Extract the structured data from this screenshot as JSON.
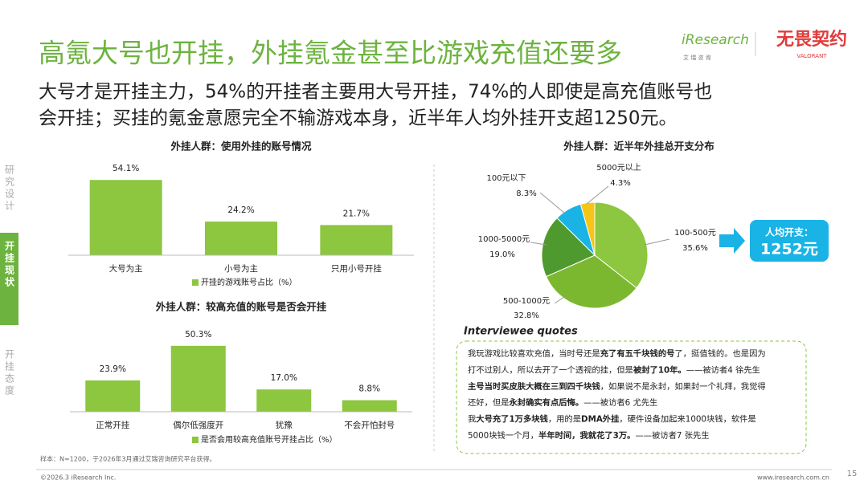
{
  "header": {
    "title": "高氪大号也开挂，外挂氪金甚至比游戏充值还要多",
    "subtitle": [
      "大号才是开挂主力，54%的开挂者主要用大号开挂，74%的人即使是高充值账号也",
      "会开挂；买挂的氪金意愿完全不输游戏本身，近半年人均外挂开支超1250元。"
    ]
  },
  "logos": {
    "iresearch": "iResearch",
    "iresearch_cn": "艾 瑞 咨 询",
    "game": "无畏契约",
    "game_en": "VALORANT"
  },
  "sidebar": [
    "研究设计",
    "开挂现状",
    "开挂态度"
  ],
  "chart_data": [
    {
      "type": "bar",
      "title": "外挂人群：使用外挂的账号情况",
      "categories": [
        "大号为主",
        "小号为主",
        "只用小号开挂"
      ],
      "series": [
        {
          "name": "开挂的游戏账号占比（%）",
          "color": "#8dc63f",
          "values": [
            54.1,
            24.2,
            21.7
          ],
          "value_labels": [
            "54.1%",
            "24.2%",
            "21.7%"
          ]
        }
      ],
      "ylim": [
        0,
        60
      ]
    },
    {
      "type": "bar",
      "title": "外挂人群：较高充值的账号是否会开挂",
      "categories": [
        "正常开挂",
        "偶尔低强度开",
        "犹豫",
        "不会开怕封号"
      ],
      "series": [
        {
          "name": "是否会用较高充值账号开挂占比（%）",
          "color": "#8dc63f",
          "values": [
            23.9,
            50.3,
            17.0,
            8.8
          ],
          "value_labels": [
            "23.9%",
            "50.3%",
            "17.0%",
            "8.8%"
          ]
        }
      ],
      "ylim": [
        0,
        60
      ]
    },
    {
      "type": "pie",
      "title": "外挂人群：近半年外挂总开支分布",
      "categories": [
        "100-500元",
        "500-1000元",
        "1000-5000元",
        "100元以下",
        "5000元以上"
      ],
      "values": [
        35.6,
        32.8,
        19.0,
        8.3,
        4.3
      ],
      "value_labels": [
        "35.6%",
        "32.8%",
        "19.0%",
        "8.3%",
        "4.3%"
      ],
      "colors": [
        "#8dc63f",
        "#7cb82f",
        "#4e9a2e",
        "#1ab3e6",
        "#f5c518"
      ]
    }
  ],
  "callout": {
    "label": "人均开支：",
    "value": "1252元"
  },
  "quotes": {
    "title": "Interviewee quotes",
    "lines": [
      [
        {
          "text": "我玩游戏比较喜欢充值，当时号还是",
          "bold": false
        },
        {
          "text": "充了有五千块钱的号",
          "bold": true
        },
        {
          "text": "了，挺值钱的。也是因为",
          "bold": false
        }
      ],
      [
        {
          "text": "打不过别人，所以去开了一个透视的挂，但是",
          "bold": false
        },
        {
          "text": "被封了10年。",
          "bold": true
        },
        {
          "text": "——被访者4 徐先生",
          "bold": false
        }
      ],
      [
        {
          "text": "主号当时买皮肤大概在三到四千块钱",
          "bold": true
        },
        {
          "text": "，如果说不是永封，如果封一个礼拜，我觉得",
          "bold": false
        }
      ],
      [
        {
          "text": "还好，但是",
          "bold": false
        },
        {
          "text": "永封确实有点后悔。",
          "bold": true
        },
        {
          "text": "——被访者6 尤先生",
          "bold": false
        }
      ],
      [
        {
          "text": "我",
          "bold": false
        },
        {
          "text": "大号充了1万多块钱",
          "bold": true
        },
        {
          "text": "，用的是",
          "bold": false
        },
        {
          "text": "DMA外挂",
          "bold": true
        },
        {
          "text": "，硬件设备加起来1000块钱，软件是",
          "bold": false
        }
      ],
      [
        {
          "text": "5000块钱一个月，",
          "bold": false
        },
        {
          "text": "半年时间，我就花了3万。",
          "bold": true
        },
        {
          "text": "——被访者7 张先生",
          "bold": false
        }
      ]
    ]
  },
  "footer": {
    "note": "样本：N=1200，于2026年3月通过艾瑞咨询研究平台获得。",
    "copyright": "©2026.3 iResearch Inc.",
    "website": "www.iresearch.com.cn",
    "page": "15"
  }
}
